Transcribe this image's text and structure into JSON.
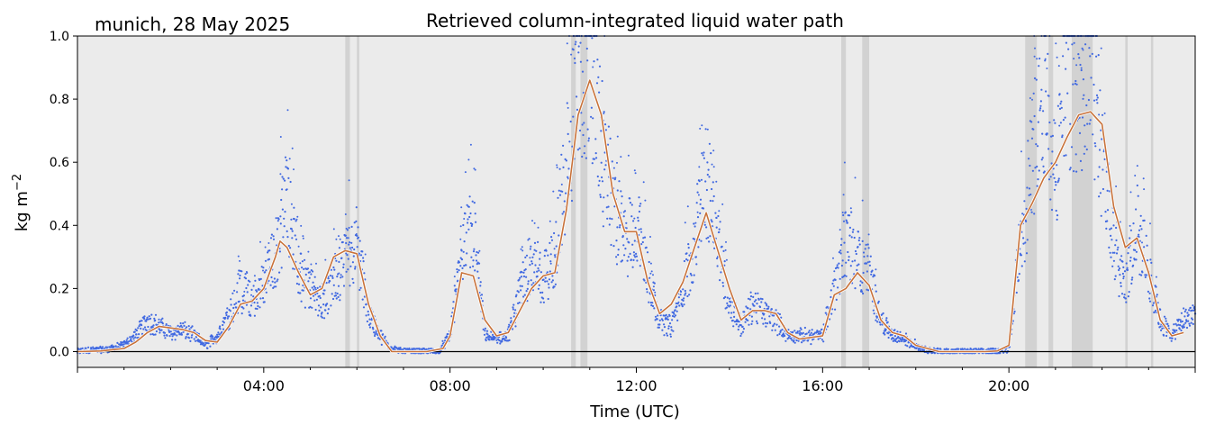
{
  "chart_data": {
    "type": "scatter",
    "title": "Retrieved column-integrated liquid water path",
    "corner_label": "munich, 28 May 2025",
    "xlabel": "Time (UTC)",
    "ylabel": "kg m",
    "ylabel_exponent": "−2",
    "xlim": [
      0,
      24
    ],
    "ylim": [
      -0.05,
      1.0
    ],
    "x_ticks": [
      {
        "value": 4,
        "label": "04:00"
      },
      {
        "value": 8,
        "label": "08:00"
      },
      {
        "value": 12,
        "label": "12:00"
      },
      {
        "value": 16,
        "label": "16:00"
      },
      {
        "value": 20,
        "label": "20:00"
      }
    ],
    "y_ticks": [
      {
        "value": 0.0,
        "label": "0.0"
      },
      {
        "value": 0.2,
        "label": "0.2"
      },
      {
        "value": 0.4,
        "label": "0.4"
      },
      {
        "value": 0.6,
        "label": "0.6"
      },
      {
        "value": 0.8,
        "label": "0.8"
      },
      {
        "value": 1.0,
        "label": "1.0"
      }
    ],
    "grid": false,
    "background_color": "#ebebeb",
    "series": [
      {
        "kind": "scatter",
        "color": "#4169e1",
        "points": [
          [
            0.0,
            0.0
          ],
          [
            0.25,
            0.005
          ],
          [
            0.5,
            0.005
          ],
          [
            0.75,
            0.01
          ],
          [
            1.0,
            0.02
          ],
          [
            1.25,
            0.05
          ],
          [
            1.5,
            0.1
          ],
          [
            1.75,
            0.08
          ],
          [
            2.0,
            0.06
          ],
          [
            2.25,
            0.07
          ],
          [
            2.5,
            0.05
          ],
          [
            2.75,
            0.02
          ],
          [
            3.0,
            0.05
          ],
          [
            3.25,
            0.12
          ],
          [
            3.5,
            0.2
          ],
          [
            3.75,
            0.15
          ],
          [
            4.0,
            0.22
          ],
          [
            4.25,
            0.3
          ],
          [
            4.5,
            0.5
          ],
          [
            4.75,
            0.25
          ],
          [
            5.0,
            0.2
          ],
          [
            5.25,
            0.15
          ],
          [
            5.5,
            0.22
          ],
          [
            5.75,
            0.28
          ],
          [
            6.0,
            0.35
          ],
          [
            6.25,
            0.12
          ],
          [
            6.5,
            0.05
          ],
          [
            6.75,
            0.01
          ],
          [
            7.0,
            0.0
          ],
          [
            7.25,
            0.0
          ],
          [
            7.5,
            0.0
          ],
          [
            7.75,
            0.0
          ],
          [
            8.0,
            0.05
          ],
          [
            8.25,
            0.3
          ],
          [
            8.5,
            0.4
          ],
          [
            8.75,
            0.05
          ],
          [
            9.0,
            0.04
          ],
          [
            9.25,
            0.05
          ],
          [
            9.5,
            0.18
          ],
          [
            9.75,
            0.3
          ],
          [
            10.0,
            0.22
          ],
          [
            10.25,
            0.3
          ],
          [
            10.5,
            0.6
          ],
          [
            10.75,
            0.9
          ],
          [
            11.0,
            0.95
          ],
          [
            11.25,
            0.65
          ],
          [
            11.5,
            0.45
          ],
          [
            11.75,
            0.35
          ],
          [
            12.0,
            0.4
          ],
          [
            12.25,
            0.25
          ],
          [
            12.5,
            0.1
          ],
          [
            12.75,
            0.08
          ],
          [
            13.0,
            0.2
          ],
          [
            13.25,
            0.35
          ],
          [
            13.5,
            0.55
          ],
          [
            13.75,
            0.35
          ],
          [
            14.0,
            0.15
          ],
          [
            14.25,
            0.08
          ],
          [
            14.5,
            0.15
          ],
          [
            14.75,
            0.12
          ],
          [
            15.0,
            0.1
          ],
          [
            15.25,
            0.05
          ],
          [
            15.5,
            0.05
          ],
          [
            15.75,
            0.05
          ],
          [
            16.0,
            0.05
          ],
          [
            16.25,
            0.2
          ],
          [
            16.5,
            0.35
          ],
          [
            16.75,
            0.3
          ],
          [
            17.0,
            0.25
          ],
          [
            17.25,
            0.1
          ],
          [
            17.5,
            0.05
          ],
          [
            17.75,
            0.04
          ],
          [
            18.0,
            0.02
          ],
          [
            18.25,
            0.005
          ],
          [
            18.5,
            0.0
          ],
          [
            18.75,
            0.0
          ],
          [
            19.0,
            0.0
          ],
          [
            19.25,
            0.0
          ],
          [
            19.5,
            0.0
          ],
          [
            19.75,
            0.0
          ],
          [
            20.0,
            0.01
          ],
          [
            20.25,
            0.35
          ],
          [
            20.5,
            0.6
          ],
          [
            20.75,
            0.85
          ],
          [
            21.0,
            0.55
          ],
          [
            21.25,
            0.9
          ],
          [
            21.5,
            0.8
          ],
          [
            21.75,
            0.95
          ],
          [
            22.0,
            0.6
          ],
          [
            22.25,
            0.35
          ],
          [
            22.5,
            0.2
          ],
          [
            22.75,
            0.4
          ],
          [
            23.0,
            0.25
          ],
          [
            23.25,
            0.1
          ],
          [
            23.5,
            0.05
          ],
          [
            23.75,
            0.1
          ],
          [
            24.0,
            0.12
          ]
        ]
      },
      {
        "kind": "line",
        "color": "#c8723a",
        "points": [
          [
            0.0,
            0.0
          ],
          [
            0.5,
            0.002
          ],
          [
            1.0,
            0.01
          ],
          [
            1.25,
            0.03
          ],
          [
            1.5,
            0.06
          ],
          [
            1.75,
            0.08
          ],
          [
            2.0,
            0.075
          ],
          [
            2.25,
            0.07
          ],
          [
            2.5,
            0.06
          ],
          [
            2.75,
            0.035
          ],
          [
            3.0,
            0.03
          ],
          [
            3.25,
            0.08
          ],
          [
            3.5,
            0.15
          ],
          [
            3.75,
            0.16
          ],
          [
            4.0,
            0.2
          ],
          [
            4.25,
            0.3
          ],
          [
            4.35,
            0.35
          ],
          [
            4.5,
            0.33
          ],
          [
            4.75,
            0.25
          ],
          [
            5.0,
            0.18
          ],
          [
            5.25,
            0.2
          ],
          [
            5.5,
            0.3
          ],
          [
            5.75,
            0.32
          ],
          [
            6.0,
            0.31
          ],
          [
            6.25,
            0.15
          ],
          [
            6.5,
            0.05
          ],
          [
            6.75,
            0.0
          ],
          [
            7.0,
            0.0
          ],
          [
            7.5,
            0.0
          ],
          [
            7.85,
            0.01
          ],
          [
            8.0,
            0.05
          ],
          [
            8.25,
            0.25
          ],
          [
            8.5,
            0.24
          ],
          [
            8.75,
            0.1
          ],
          [
            9.0,
            0.05
          ],
          [
            9.25,
            0.06
          ],
          [
            9.5,
            0.13
          ],
          [
            9.75,
            0.2
          ],
          [
            10.0,
            0.24
          ],
          [
            10.25,
            0.25
          ],
          [
            10.5,
            0.45
          ],
          [
            10.75,
            0.75
          ],
          [
            11.0,
            0.86
          ],
          [
            11.25,
            0.75
          ],
          [
            11.5,
            0.5
          ],
          [
            11.75,
            0.38
          ],
          [
            12.0,
            0.38
          ],
          [
            12.25,
            0.22
          ],
          [
            12.5,
            0.12
          ],
          [
            12.75,
            0.15
          ],
          [
            13.0,
            0.22
          ],
          [
            13.25,
            0.33
          ],
          [
            13.5,
            0.44
          ],
          [
            13.75,
            0.32
          ],
          [
            14.0,
            0.2
          ],
          [
            14.25,
            0.1
          ],
          [
            14.5,
            0.13
          ],
          [
            14.75,
            0.13
          ],
          [
            15.0,
            0.12
          ],
          [
            15.25,
            0.06
          ],
          [
            15.5,
            0.04
          ],
          [
            16.0,
            0.05
          ],
          [
            16.25,
            0.18
          ],
          [
            16.5,
            0.2
          ],
          [
            16.75,
            0.25
          ],
          [
            17.0,
            0.21
          ],
          [
            17.25,
            0.1
          ],
          [
            17.5,
            0.06
          ],
          [
            17.75,
            0.05
          ],
          [
            18.0,
            0.02
          ],
          [
            18.5,
            0.0
          ],
          [
            19.0,
            0.0
          ],
          [
            19.5,
            0.0
          ],
          [
            19.75,
            0.002
          ],
          [
            20.0,
            0.02
          ],
          [
            20.25,
            0.4
          ],
          [
            20.5,
            0.47
          ],
          [
            20.75,
            0.55
          ],
          [
            21.0,
            0.6
          ],
          [
            21.25,
            0.68
          ],
          [
            21.5,
            0.75
          ],
          [
            21.75,
            0.76
          ],
          [
            22.0,
            0.72
          ],
          [
            22.25,
            0.46
          ],
          [
            22.5,
            0.33
          ],
          [
            22.75,
            0.36
          ],
          [
            23.0,
            0.25
          ],
          [
            23.25,
            0.1
          ],
          [
            23.5,
            0.05
          ],
          [
            23.75,
            0.06
          ]
        ]
      }
    ],
    "shaded_time_ranges": [
      [
        5.75,
        5.85
      ],
      [
        6.0,
        6.05
      ],
      [
        10.6,
        10.7
      ],
      [
        10.8,
        10.95
      ],
      [
        16.4,
        16.5
      ],
      [
        16.85,
        17.0
      ],
      [
        20.35,
        20.6
      ],
      [
        20.85,
        20.95
      ],
      [
        21.35,
        21.8
      ],
      [
        22.5,
        22.55
      ],
      [
        23.05,
        23.1
      ]
    ],
    "zero_line": true
  }
}
